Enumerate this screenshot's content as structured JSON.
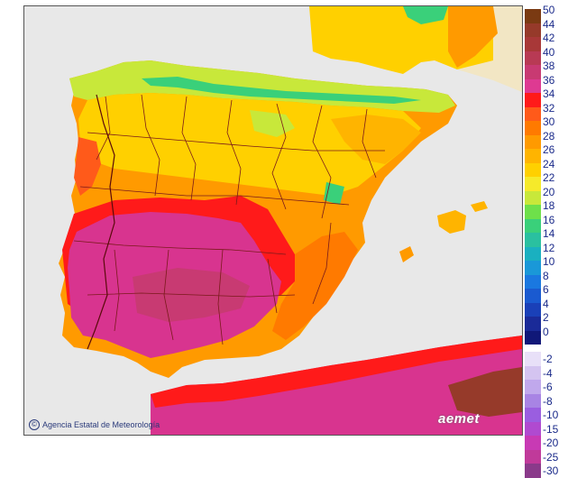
{
  "map": {
    "credit_text": "Agencia Estatal de Meteorología",
    "logo_text": "aemet",
    "colors": {
      "sea": "#e8e8e8",
      "outside": "#f2e8c8",
      "temp_36_plus": "#d8348f",
      "temp_34": "#ee1c25",
      "temp_30": "#ff7d00",
      "temp_28": "#ff9a00",
      "temp_26": "#ffc000",
      "temp_24": "#ffe000",
      "temp_20": "#a8e04a",
      "temp_16": "#3cc88a",
      "border": "#7a1a1a"
    }
  },
  "legend": {
    "positive": [
      {
        "label": "50",
        "color": "#7a3a12"
      },
      {
        "label": "44",
        "color": "#963a2a"
      },
      {
        "label": "42",
        "color": "#a83838"
      },
      {
        "label": "40",
        "color": "#b83a54"
      },
      {
        "label": "38",
        "color": "#c83a72"
      },
      {
        "label": "36",
        "color": "#de3a92"
      },
      {
        "label": "34",
        "color": "#ff1a1a"
      },
      {
        "label": "32",
        "color": "#ff5a1a"
      },
      {
        "label": "30",
        "color": "#ff7a00"
      },
      {
        "label": "28",
        "color": "#ff9a00"
      },
      {
        "label": "26",
        "color": "#ffb400"
      },
      {
        "label": "24",
        "color": "#ffd000"
      },
      {
        "label": "22",
        "color": "#f6ea2a"
      },
      {
        "label": "20",
        "color": "#c8e83a"
      },
      {
        "label": "18",
        "color": "#6ee04a"
      },
      {
        "label": "16",
        "color": "#3ad07a"
      },
      {
        "label": "14",
        "color": "#2ac0a0"
      },
      {
        "label": "12",
        "color": "#1ab0c0"
      },
      {
        "label": "10",
        "color": "#1a98d8"
      },
      {
        "label": "8",
        "color": "#1a78e0"
      },
      {
        "label": "6",
        "color": "#1a5ad0"
      },
      {
        "label": "4",
        "color": "#1a40b8"
      },
      {
        "label": "2",
        "color": "#1a2a98"
      },
      {
        "label": "0",
        "color": "#101878"
      }
    ],
    "negative": [
      {
        "label": "-2",
        "color": "#e8e0f8"
      },
      {
        "label": "-4",
        "color": "#d4c4f0"
      },
      {
        "label": "-6",
        "color": "#c0a8ec"
      },
      {
        "label": "-8",
        "color": "#a884e4"
      },
      {
        "label": "-10",
        "color": "#9a5ee0"
      },
      {
        "label": "-15",
        "color": "#b04ad0"
      },
      {
        "label": "-20",
        "color": "#c83ab4"
      },
      {
        "label": "-25",
        "color": "#c03a9a"
      },
      {
        "label": "-30",
        "color": "#8a3a8a"
      }
    ]
  }
}
